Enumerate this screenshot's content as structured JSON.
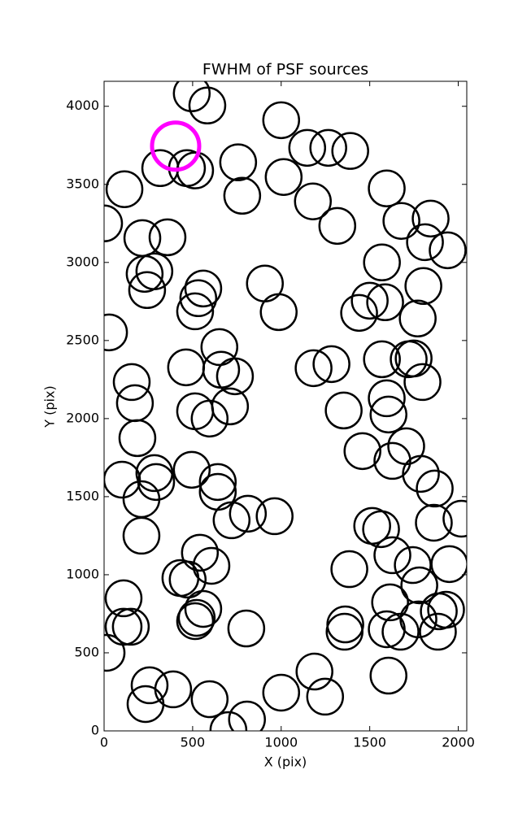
{
  "chart_data": {
    "type": "scatter",
    "title": "FWHM of PSF sources",
    "x_label": "X (pix)",
    "y_label": "Y (pix)",
    "xlim": [
      0,
      2048
    ],
    "ylim": [
      0,
      4160
    ],
    "xticks": [
      0,
      500,
      1000,
      1500,
      2000
    ],
    "yticks": [
      0,
      500,
      1000,
      1500,
      2000,
      2500,
      3000,
      3500,
      4000
    ],
    "series": [
      {
        "color": "#000000",
        "x": [
          495,
          583,
          1000,
          1147,
          1266,
          1390,
          317,
          468,
          514,
          757,
          1014,
          780,
          115,
          1596,
          1179,
          1317,
          0,
          216,
          358,
          1679,
          1844,
          1812,
          1940,
          1569,
          229,
          284,
          243,
          560,
          532,
          514,
          908,
          986,
          1500,
          1440,
          1587,
          1803,
          1771,
          28,
          651,
          463,
          661,
          739,
          1183,
          1284,
          1569,
          1720,
          1748,
          1798,
          156,
          174,
          514,
          596,
          711,
          1353,
          1596,
          1606,
          188,
          101,
          284,
          294,
          495,
          642,
          642,
          211,
          720,
          812,
          963,
          1459,
          1628,
          1706,
          1789,
          1867,
          2018,
          1862,
          1514,
          1564,
          1628,
          1743,
          1950,
          1780,
          1385,
          211,
          541,
          606,
          431,
          472,
          110,
          560,
          523,
          514,
          110,
          151,
          803,
          1362,
          1358,
          1596,
          1674,
          1615,
          1775,
          1885,
          1890,
          1931,
          14,
          1606,
          1188,
          1248,
          1000,
          257,
          390,
          596,
          234,
          807,
          702
        ],
        "y": [
          4083,
          4005,
          3911,
          3734,
          3734,
          3714,
          3604,
          3604,
          3589,
          3641,
          3547,
          3427,
          3469,
          3474,
          3391,
          3234,
          3250,
          3156,
          3161,
          3266,
          3281,
          3130,
          3078,
          3000,
          2927,
          2943,
          2823,
          2833,
          2771,
          2687,
          2865,
          2682,
          2755,
          2677,
          2745,
          2849,
          2641,
          2552,
          2458,
          2328,
          2313,
          2271,
          2323,
          2349,
          2380,
          2380,
          2385,
          2234,
          2234,
          2099,
          2047,
          2000,
          2078,
          2052,
          2130,
          2026,
          1875,
          1609,
          1651,
          1594,
          1672,
          1594,
          1531,
          1484,
          1349,
          1391,
          1375,
          1792,
          1729,
          1823,
          1646,
          1552,
          1359,
          1333,
          1313,
          1292,
          1125,
          1062,
          1068,
          932,
          1036,
          1250,
          1141,
          1057,
          979,
          969,
          849,
          781,
          724,
          703,
          667,
          667,
          656,
          682,
          635,
          651,
          635,
          823,
          714,
          635,
          766,
          776,
          500,
          354,
          380,
          219,
          245,
          292,
          266,
          203,
          172,
          73,
          5
        ]
      },
      {
        "color": "#ff00ff",
        "x": [
          404
        ],
        "y": [
          3745
        ]
      }
    ]
  }
}
